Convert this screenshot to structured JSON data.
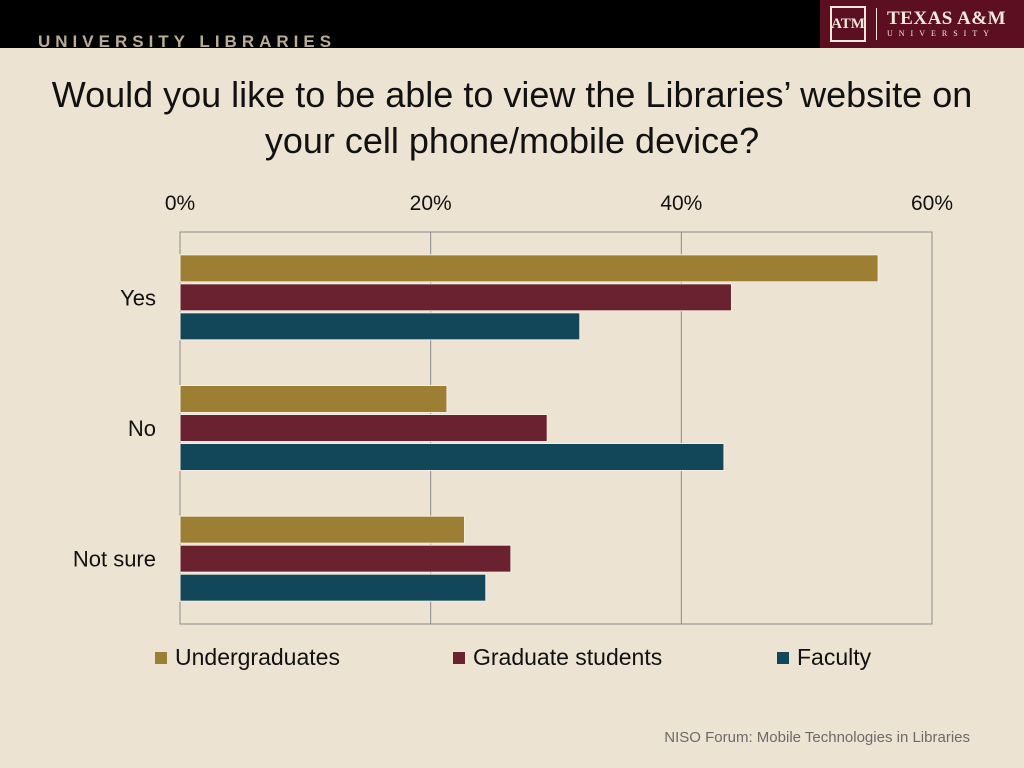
{
  "header": {
    "library_name": "UNIVERSITY LIBRARIES",
    "logo_mark": "ATM",
    "logo_line1": "TEXAS A&M",
    "logo_line2": "UNIVERSITY"
  },
  "footer": {
    "text": "NISO Forum:  Mobile Technologies in Libraries"
  },
  "colors": {
    "undergraduates": "#9c7f33",
    "graduate_students": "#6a2230",
    "faculty": "#12475a",
    "grid": "#8a8a8a"
  },
  "chart_data": {
    "type": "bar",
    "orientation": "horizontal",
    "title": "Would you like to be able to view the Libraries’ website on your cell phone/mobile device?",
    "categories": [
      "Yes",
      "No",
      "Not sure"
    ],
    "series": [
      {
        "name": "Undergraduates",
        "values": [
          55.7,
          21.3,
          22.7
        ]
      },
      {
        "name": "Graduate students",
        "values": [
          44.0,
          29.3,
          26.4
        ]
      },
      {
        "name": "Faculty",
        "values": [
          31.9,
          43.4,
          24.4
        ]
      }
    ],
    "xlim": [
      0,
      60
    ],
    "xticks": [
      0,
      20,
      40,
      60
    ],
    "xtick_labels": [
      "0%",
      "20%",
      "40%",
      "60%"
    ],
    "x_axis_position": "top",
    "grid": true,
    "legend_position": "bottom"
  }
}
